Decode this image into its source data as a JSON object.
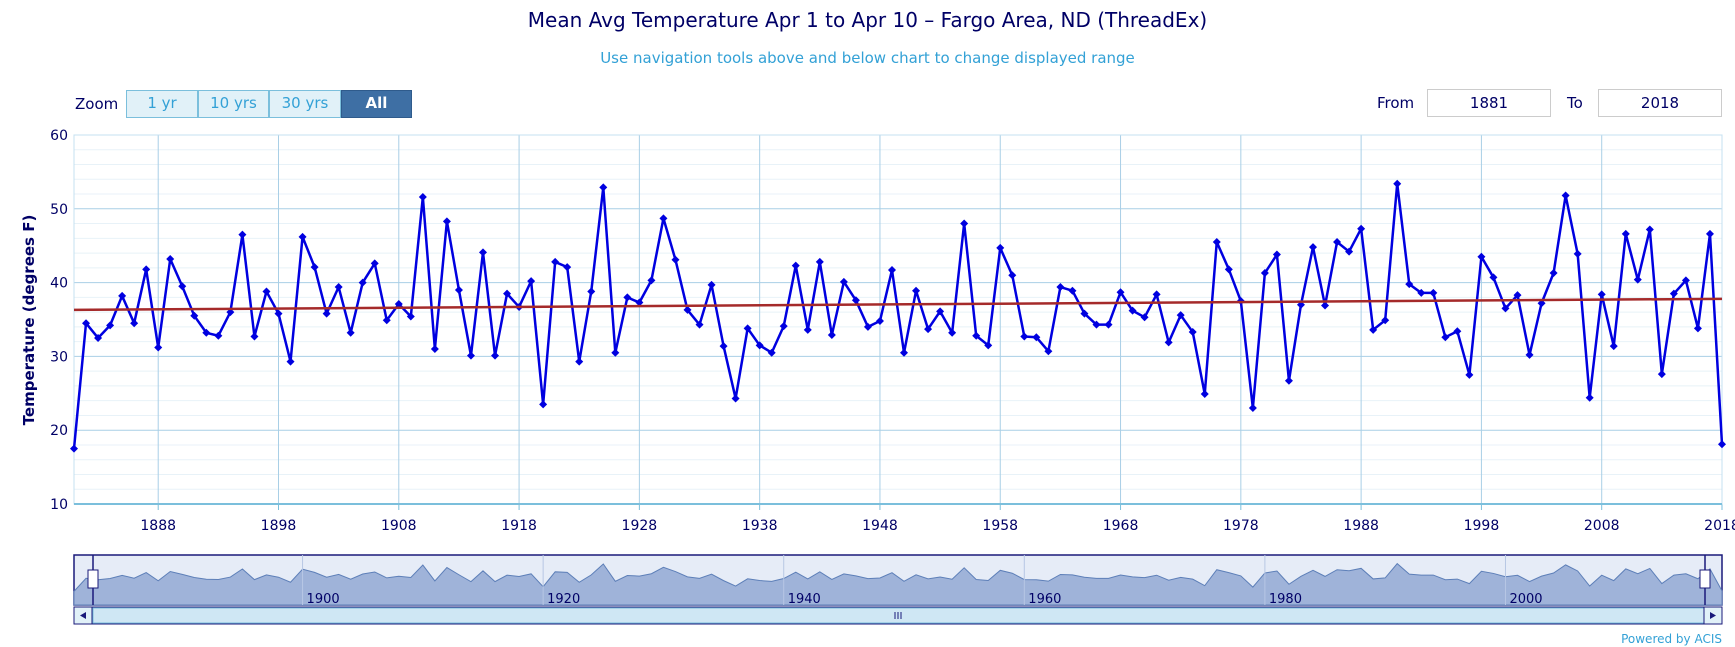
{
  "title": "Mean Avg Temperature Apr 1 to Apr 10 – Fargo Area, ND (ThreadEx)",
  "subtitle": "Use navigation tools above and below chart to change displayed range",
  "zoom": {
    "label": "Zoom",
    "buttons": [
      "1 yr",
      "10 yrs",
      "30 yrs",
      "All"
    ],
    "active": "All"
  },
  "range": {
    "from_label": "From",
    "from_value": "1881",
    "to_label": "To",
    "to_value": "2018"
  },
  "powered_by": "Powered by ACIS",
  "navigator": {
    "labels": [
      "1900",
      "1920",
      "1940",
      "1960",
      "1980",
      "2000"
    ]
  },
  "colors": {
    "series": "#0000e0",
    "trend": "#a52a2a",
    "grid": "#a9cfe6",
    "navigator_fill": "#9fb3d9"
  },
  "chart_data": {
    "type": "line",
    "title": "Mean Avg Temperature Apr 1 to Apr 10 – Fargo Area, ND (ThreadEx)",
    "subtitle": "Use navigation tools above and below chart to change displayed range",
    "ylabel": "Temperature (degrees F)",
    "xlabel": "",
    "ylim": [
      10,
      60
    ],
    "xlim": [
      1881,
      2018
    ],
    "yticks": [
      10,
      20,
      30,
      40,
      50,
      60
    ],
    "xticks": [
      1888,
      1898,
      1908,
      1918,
      1928,
      1938,
      1948,
      1958,
      1968,
      1978,
      1988,
      1998,
      2008,
      2018
    ],
    "grid": true,
    "series": [
      {
        "x_start": 1881,
        "values": [
          17.5,
          34.5,
          32.5,
          34.2,
          38.2,
          34.5,
          41.8,
          31.2,
          43.2,
          39.5,
          35.5,
          33.2,
          32.8,
          36.0,
          46.5,
          32.7,
          38.8,
          35.8,
          29.3,
          46.2,
          42.1,
          35.8,
          39.4,
          33.2,
          40.0,
          42.6,
          34.9,
          37.1,
          35.4,
          51.6,
          31.0,
          48.3,
          39.0,
          30.1,
          44.1,
          30.1,
          38.5,
          36.7,
          40.2,
          23.5,
          42.8,
          42.1,
          29.3,
          38.8,
          52.9,
          30.5,
          38.0,
          37.3,
          40.3,
          48.7,
          43.1,
          36.3,
          34.3,
          39.7,
          31.4,
          24.3,
          33.8,
          31.5,
          30.5,
          34.1,
          42.3,
          33.6,
          42.8,
          32.9,
          40.1,
          37.6,
          34.0,
          34.8,
          41.7,
          30.5,
          38.9,
          33.7,
          36.1,
          33.2,
          48.0,
          32.8,
          31.5,
          44.7,
          41.0,
          32.7,
          32.6,
          30.7,
          39.4,
          38.9,
          35.8,
          34.3,
          34.3,
          38.7,
          36.2,
          35.3,
          38.4,
          31.9,
          35.6,
          33.3,
          24.9,
          45.5,
          41.8,
          37.5,
          23.0,
          41.3,
          43.8,
          26.7,
          37.0,
          44.8,
          36.9,
          45.5,
          44.2,
          47.3,
          33.6,
          34.9,
          53.4,
          39.8,
          38.6,
          38.6,
          32.6,
          33.4,
          27.5,
          43.5,
          40.7,
          36.5,
          38.3,
          30.2,
          37.2,
          41.3,
          51.8,
          43.9,
          24.4,
          38.4,
          31.4,
          46.6,
          40.4,
          47.2,
          27.6,
          38.5,
          40.3,
          33.8,
          46.6,
          18.1
        ]
      },
      {
        "type": "trend",
        "x": [
          1881,
          2018
        ],
        "values": [
          36.3,
          37.8
        ]
      }
    ]
  }
}
